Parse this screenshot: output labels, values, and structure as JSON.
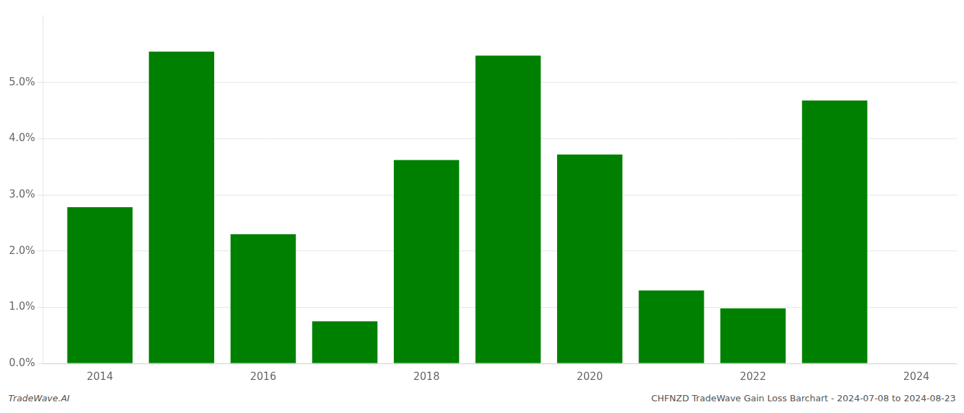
{
  "chart_data": {
    "type": "bar",
    "x": [
      2014,
      2015,
      2016,
      2017,
      2018,
      2019,
      2020,
      2021,
      2022,
      2023
    ],
    "values": [
      0.0278,
      0.0555,
      0.023,
      0.0075,
      0.0362,
      0.0548,
      0.0372,
      0.013,
      0.0098,
      0.0468
    ],
    "color": "#008000",
    "xlim": [
      2013.3,
      2024.5
    ],
    "xticks": [
      2014,
      2016,
      2018,
      2020,
      2022,
      2024
    ],
    "ylim": [
      0,
      0.062
    ],
    "yticks": [
      {
        "value": 0.0,
        "label": "0.0%"
      },
      {
        "value": 0.01,
        "label": "1.0%"
      },
      {
        "value": 0.02,
        "label": "2.0%"
      },
      {
        "value": 0.03,
        "label": "3.0%"
      },
      {
        "value": 0.04,
        "label": "4.0%"
      },
      {
        "value": 0.05,
        "label": "5.0%"
      }
    ],
    "grid": "y",
    "annotations": [
      "TradeWave.AI",
      "CHFNZD TradeWave Gain Loss Barchart - 2024-07-08 to 2024-08-23"
    ]
  }
}
